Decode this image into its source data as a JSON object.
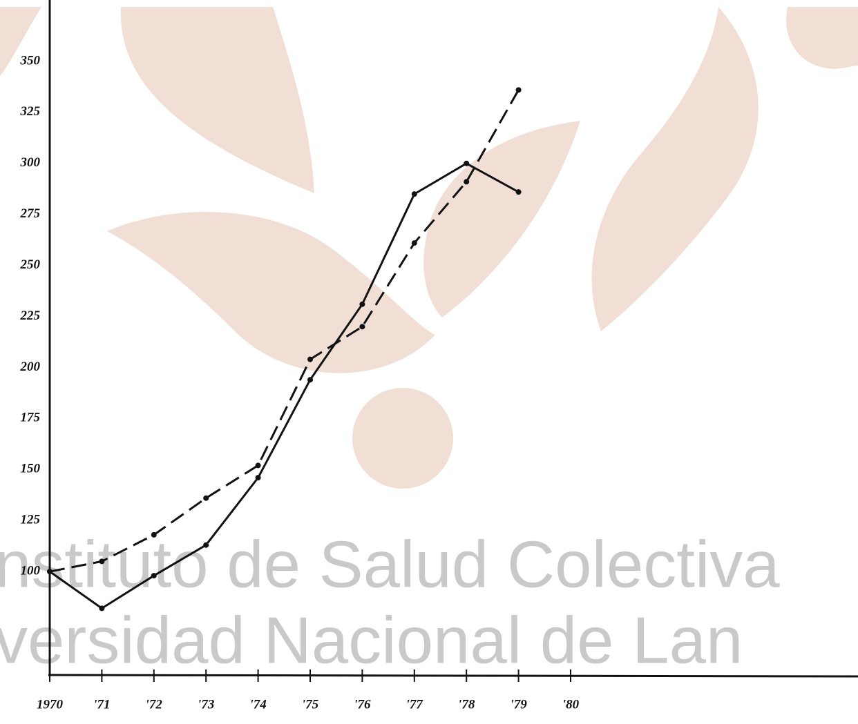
{
  "chart_data": {
    "type": "line",
    "categories": [
      "1970",
      "'71",
      "'72",
      "'73",
      "'74",
      "'75",
      "'76",
      "'77",
      "'78",
      "'79",
      "'80"
    ],
    "series": [
      {
        "color": "#111111",
        "style": "solid",
        "values": [
          100,
          82,
          98,
          113,
          146,
          194,
          231,
          285,
          300,
          286,
          null
        ]
      },
      {
        "color": "#111111",
        "style": "dashed",
        "values": [
          100,
          105,
          118,
          136,
          152,
          204,
          220,
          261,
          291,
          336,
          null
        ]
      }
    ],
    "ylim": [
      50,
      375
    ],
    "yticks": [
      100,
      125,
      150,
      175,
      200,
      225,
      250,
      275,
      300,
      325,
      350
    ],
    "grid": false
  },
  "watermark": [
    "nstituto de Salud Colectiva",
    "versidad Nacional de Lan"
  ]
}
